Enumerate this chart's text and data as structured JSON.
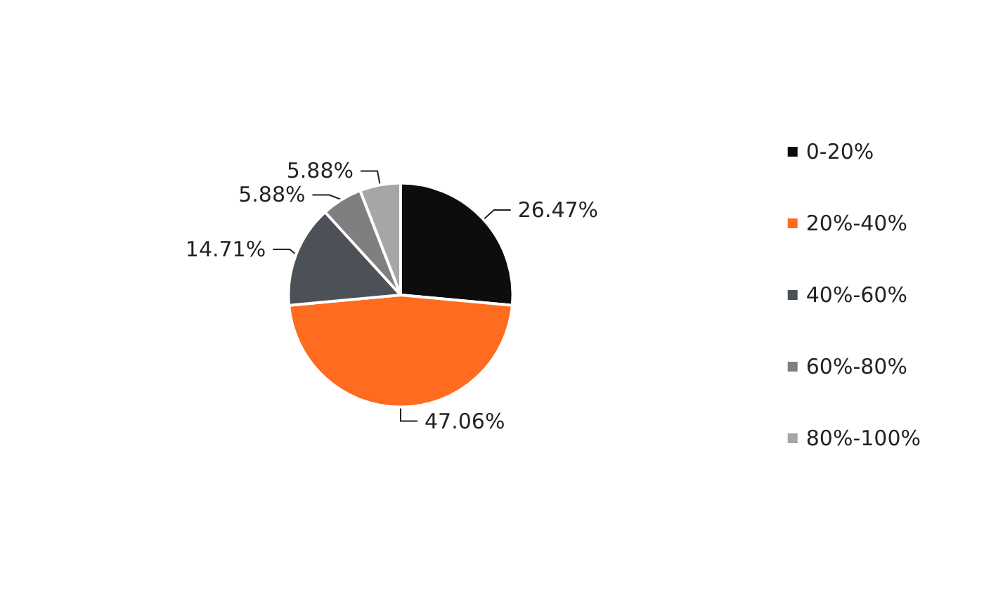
{
  "chart_data": {
    "type": "pie",
    "categories": [
      "0-20%",
      "20%-40%",
      "40%-60%",
      "60%-80%",
      "80%-100%"
    ],
    "values": [
      26.47,
      47.06,
      14.71,
      5.88,
      5.88
    ],
    "value_labels": [
      "26.47%",
      "47.06%",
      "14.71%",
      "5.88%",
      "5.88%"
    ],
    "colors": [
      "#0d0d0d",
      "#ff6b1f",
      "#4b5157",
      "#7f7f7f",
      "#a6a6a6"
    ],
    "legend": "right"
  }
}
